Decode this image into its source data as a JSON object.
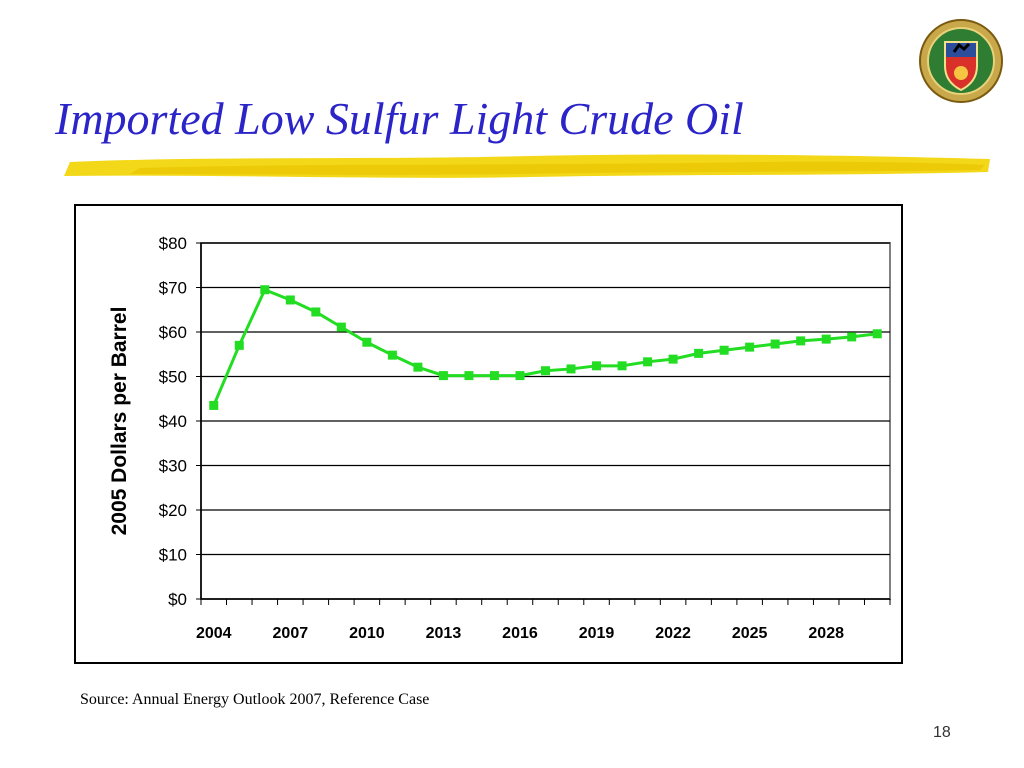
{
  "slide": {
    "title": "Imported Low Sulfur Light Crude Oil",
    "source": "Source: Annual Energy Outlook 2007, Reference Case",
    "page_number": "18",
    "title_color": "#2b24c8",
    "underline_color": "#f2d400"
  },
  "chart_data": {
    "type": "line",
    "title": "",
    "xlabel": "",
    "ylabel": "2005 Dollars per Barrel",
    "x": [
      2004,
      2005,
      2006,
      2007,
      2008,
      2009,
      2010,
      2011,
      2012,
      2013,
      2014,
      2015,
      2016,
      2017,
      2018,
      2019,
      2020,
      2021,
      2022,
      2023,
      2024,
      2025,
      2026,
      2027,
      2028,
      2029,
      2030
    ],
    "series": [
      {
        "color": "#22dd22",
        "values": [
          43.5,
          57,
          69.5,
          67.2,
          64.5,
          61.1,
          57.7,
          54.8,
          52.1,
          50.2,
          50.2,
          50.2,
          50.2,
          51.3,
          51.7,
          52.4,
          52.4,
          53.3,
          53.9,
          55.2,
          55.9,
          56.6,
          57.3,
          58.0,
          58.4,
          58.9,
          59.6
        ]
      }
    ],
    "ylim": [
      0,
      80
    ],
    "yticks": [
      0,
      10,
      20,
      30,
      40,
      50,
      60,
      70,
      80
    ],
    "ytick_labels": [
      "$0",
      "$10",
      "$20",
      "$30",
      "$40",
      "$50",
      "$60",
      "$70",
      "$80"
    ],
    "xtick_labels": [
      "2004",
      "2007",
      "2010",
      "2013",
      "2016",
      "2019",
      "2022",
      "2025",
      "2028"
    ],
    "grid": true,
    "marker": "square"
  }
}
